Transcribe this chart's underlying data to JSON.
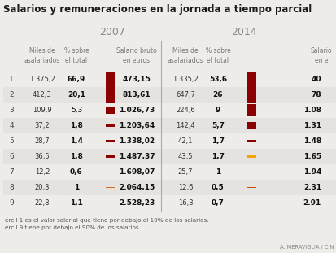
{
  "title": "Salarios y remuneraciones en la jornada a tiempo parcial",
  "year_2007": "2007",
  "year_2014": "2014",
  "row_labels": [
    "1",
    "2",
    "3",
    "4",
    "5",
    "6",
    "7",
    "8",
    "9"
  ],
  "data_2007": {
    "miles": [
      "1.375,2",
      "412,3",
      "109,9",
      "37,2",
      "28,7",
      "36,5",
      "12,2",
      "20,3",
      "22,8"
    ],
    "pct": [
      "66,9",
      "20,1",
      "5,3",
      "1,8",
      "1,4",
      "1,8",
      "0,6",
      "1",
      "1,1"
    ],
    "salario": [
      "473,15",
      "813,61",
      "1.026,73",
      "1.203,64",
      "1.338,02",
      "1.487,37",
      "1.698,07",
      "2.064,15",
      "2.528,23"
    ],
    "pct_bold": [
      true,
      true,
      false,
      true,
      true,
      true,
      true,
      true,
      true
    ]
  },
  "data_2014": {
    "miles": [
      "1.335,2",
      "647,7",
      "224,6",
      "142,4",
      "42,1",
      "43,5",
      "25,7",
      "12,6",
      "16,3"
    ],
    "pct": [
      "53,6",
      "26",
      "9",
      "5,7",
      "1,7",
      "1,7",
      "1",
      "0,5",
      "0,7"
    ],
    "salario": [
      "40",
      "78",
      "1.08",
      "1.31",
      "1.48",
      "1.65",
      "1.94",
      "2.31",
      "2.91"
    ],
    "pct_bold": [
      true,
      true,
      true,
      true,
      true,
      true,
      true,
      true,
      true
    ]
  },
  "bar_colors_2007": [
    "#8B0000",
    "#8B0000",
    "#8B0000",
    "#8B0000",
    "#8B0000",
    "#8B0000",
    "#F0A500",
    "#D4691E",
    "#3D2000"
  ],
  "bar_values_2007": [
    66.9,
    20.1,
    5.3,
    1.8,
    1.4,
    1.8,
    0.6,
    1.0,
    1.1
  ],
  "bar_colors_2014": [
    "#8B0000",
    "#8B0000",
    "#8B0000",
    "#8B0000",
    "#8B0000",
    "#F0A500",
    "#D4691E",
    "#C05000",
    "#3D2000"
  ],
  "bar_values_2014": [
    53.6,
    26.0,
    9.0,
    5.7,
    1.7,
    1.7,
    1.0,
    0.5,
    0.7
  ],
  "footnote1": "ércil 1 es el valor salarial que tiene por debajo el 10% de los salarios.",
  "footnote2": "ércil 9 tiene por debajo el 90% de los salarios",
  "credit": "A. MERAVIGLIA / CIN",
  "bg_color": "#EDECE8",
  "row_bg_even": "#EDECE8",
  "row_bg_odd": "#E4E3DF"
}
